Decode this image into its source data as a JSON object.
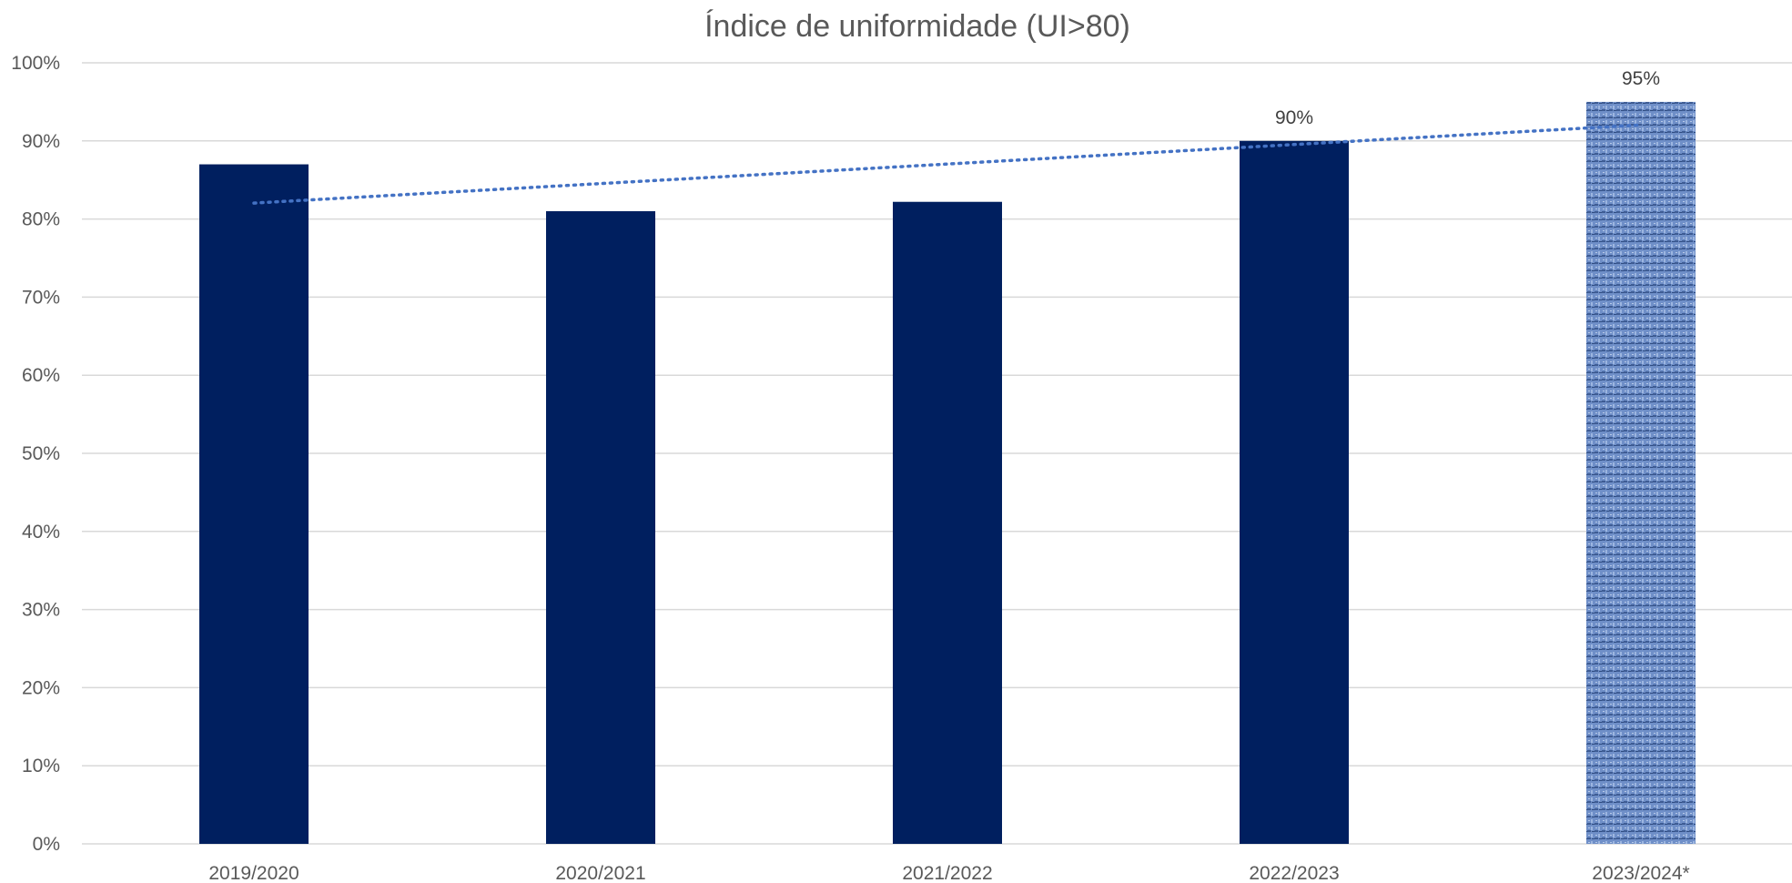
{
  "chart_data": {
    "type": "bar",
    "title": "Índice de uniformidade (UI>80)",
    "xlabel": "",
    "ylabel": "",
    "categories": [
      "2019/2020",
      "2020/2021",
      "2021/2022",
      "2022/2023",
      "2023/2024*"
    ],
    "values": [
      87,
      81,
      82.2,
      90,
      95
    ],
    "value_labels": [
      "",
      "",
      "",
      "90%",
      "95%"
    ],
    "ylim": [
      0,
      100
    ],
    "yticks": [
      0,
      10,
      20,
      30,
      40,
      50,
      60,
      70,
      80,
      90,
      100
    ],
    "ytick_labels": [
      "0%",
      "10%",
      "20%",
      "30%",
      "40%",
      "50%",
      "60%",
      "70%",
      "80%",
      "90%",
      "100%"
    ],
    "grid": true,
    "legend": "none",
    "trendline": {
      "type": "linear",
      "style": "dotted",
      "color": "#4472C4"
    },
    "colors": {
      "bar": "#001F5F",
      "highlight_bar": "#6F8FC8",
      "grid": "#D9D9D9",
      "text": "#595959"
    },
    "highlight_index": 4
  }
}
